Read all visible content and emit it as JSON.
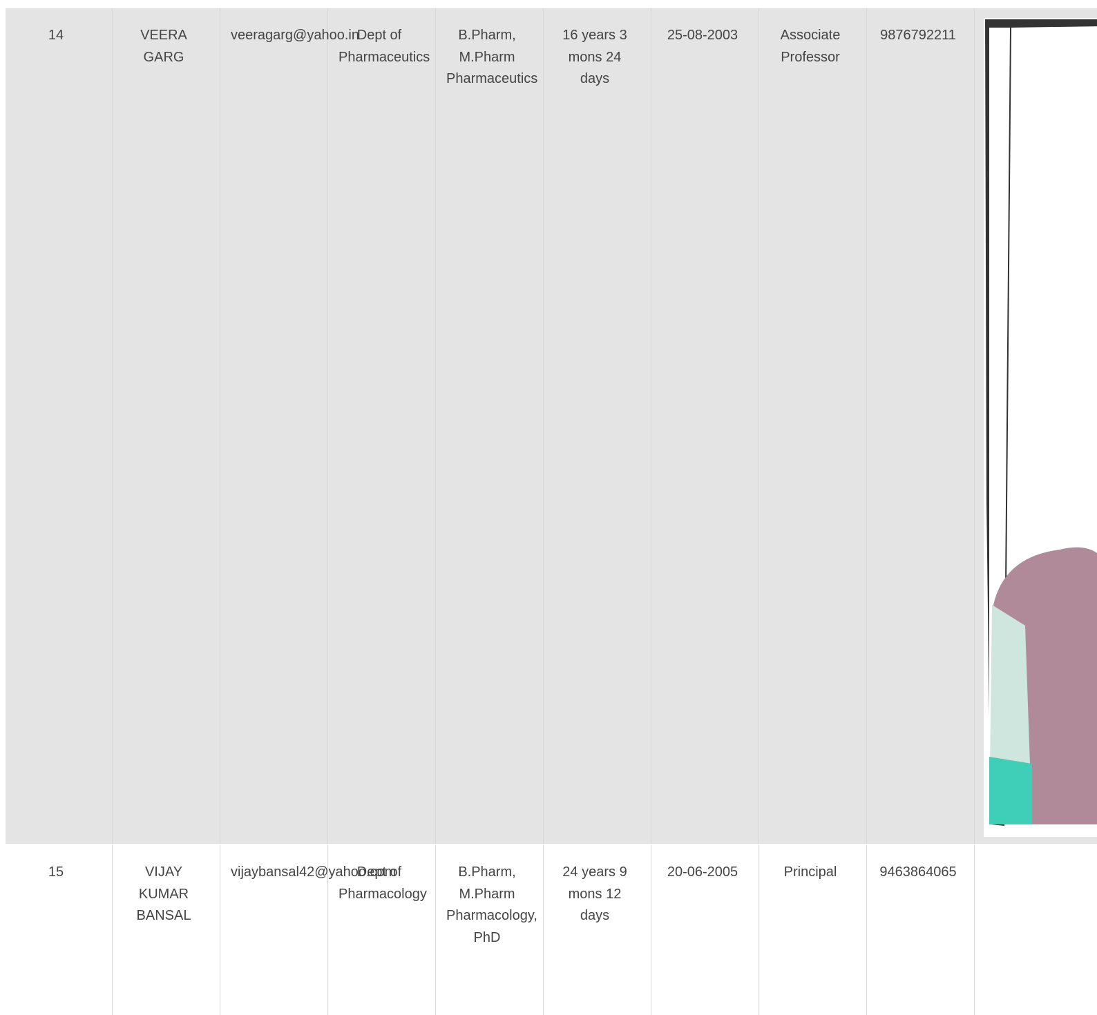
{
  "table": {
    "rows": [
      [
        "14",
        "VEERA GARG",
        "veeragarg@yahoo.in",
        "Dept of Pharmaceutics",
        "B.Pharm, M.Pharm Pharmaceutics",
        "16 years 3 mons 24 days",
        "25-08-2003",
        "Associate Professor",
        "9876792211"
      ],
      [
        "15",
        "VIJAY KUMAR BANSAL",
        "vijaybansal42@yahoo.com",
        "Dept of Pharmacology",
        "B.Pharm, M.Pharm Pharmacology, PhD",
        "24 years 9 mons 12 days",
        "20-06-2005",
        "Principal",
        "9463864065"
      ]
    ]
  }
}
